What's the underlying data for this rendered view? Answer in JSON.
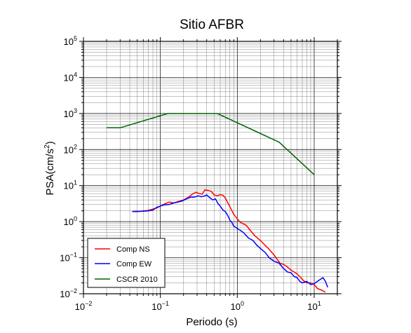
{
  "chart_data": {
    "type": "line",
    "title": "Sitio AFBR",
    "xlabel": "Periodo (s)",
    "ylabel_main": "PSA(cm/s",
    "ylabel_sup": "2",
    "ylabel_close": ")",
    "x_scale": "log",
    "y_scale": "log",
    "xlim": [
      0.01,
      20
    ],
    "ylim": [
      0.01,
      100000
    ],
    "grid": true,
    "x_ticks": [
      {
        "value": 0.01,
        "base": "10",
        "exp": "−2"
      },
      {
        "value": 0.1,
        "base": "10",
        "exp": "−1"
      },
      {
        "value": 1,
        "base": "10",
        "exp": "0"
      },
      {
        "value": 10,
        "base": "10",
        "exp": "1"
      }
    ],
    "y_ticks": [
      {
        "value": 0.01,
        "base": "10",
        "exp": "−2"
      },
      {
        "value": 0.1,
        "base": "10",
        "exp": "−1"
      },
      {
        "value": 1,
        "base": "10",
        "exp": "0"
      },
      {
        "value": 10,
        "base": "10",
        "exp": "1"
      },
      {
        "value": 100,
        "base": "10",
        "exp": "2"
      },
      {
        "value": 1000,
        "base": "10",
        "exp": "3"
      },
      {
        "value": 10000,
        "base": "10",
        "exp": "4"
      },
      {
        "value": 100000,
        "base": "10",
        "exp": "5"
      }
    ],
    "legend_position": "bottom-left",
    "series": [
      {
        "name": "Comp NS",
        "color": "#ff0000",
        "points": [
          [
            0.045,
            1.95
          ],
          [
            0.055,
            1.95
          ],
          [
            0.07,
            2.05
          ],
          [
            0.09,
            2.4
          ],
          [
            0.11,
            3.0
          ],
          [
            0.13,
            3.5
          ],
          [
            0.15,
            3.3
          ],
          [
            0.17,
            3.6
          ],
          [
            0.2,
            4.0
          ],
          [
            0.23,
            4.7
          ],
          [
            0.26,
            5.8
          ],
          [
            0.29,
            6.5
          ],
          [
            0.32,
            6.0
          ],
          [
            0.35,
            5.8
          ],
          [
            0.38,
            7.6
          ],
          [
            0.42,
            7.3
          ],
          [
            0.46,
            6.9
          ],
          [
            0.5,
            5.5
          ],
          [
            0.55,
            5.2
          ],
          [
            0.6,
            5.6
          ],
          [
            0.65,
            5.4
          ],
          [
            0.7,
            4.5
          ],
          [
            0.8,
            2.6
          ],
          [
            0.9,
            1.6
          ],
          [
            1.0,
            1.2
          ],
          [
            1.1,
            0.95
          ],
          [
            1.3,
            0.8
          ],
          [
            1.5,
            0.55
          ],
          [
            1.7,
            0.4
          ],
          [
            2.0,
            0.3
          ],
          [
            2.3,
            0.22
          ],
          [
            2.6,
            0.17
          ],
          [
            3.0,
            0.12
          ],
          [
            3.3,
            0.09
          ],
          [
            3.6,
            0.07
          ],
          [
            4.0,
            0.065
          ],
          [
            4.5,
            0.055
          ],
          [
            5.0,
            0.045
          ],
          [
            5.5,
            0.04
          ],
          [
            6.0,
            0.035
          ],
          [
            6.5,
            0.03
          ],
          [
            7.0,
            0.025
          ],
          [
            7.5,
            0.022
          ],
          [
            8.0,
            0.02
          ],
          [
            9.0,
            0.02
          ],
          [
            10.0,
            0.018
          ],
          [
            11.0,
            0.014
          ],
          [
            12.0,
            0.013
          ],
          [
            13.0,
            0.012
          ],
          [
            14.0,
            0.011
          ]
        ]
      },
      {
        "name": "Comp EW",
        "color": "#0000ff",
        "points": [
          [
            0.043,
            1.9
          ],
          [
            0.05,
            1.9
          ],
          [
            0.06,
            1.95
          ],
          [
            0.07,
            2.0
          ],
          [
            0.08,
            2.1
          ],
          [
            0.09,
            2.5
          ],
          [
            0.11,
            2.9
          ],
          [
            0.13,
            3.0
          ],
          [
            0.15,
            3.3
          ],
          [
            0.17,
            3.5
          ],
          [
            0.19,
            3.7
          ],
          [
            0.22,
            4.3
          ],
          [
            0.25,
            4.8
          ],
          [
            0.28,
            4.8
          ],
          [
            0.31,
            5.2
          ],
          [
            0.34,
            4.9
          ],
          [
            0.37,
            5.1
          ],
          [
            0.4,
            5.5
          ],
          [
            0.44,
            4.6
          ],
          [
            0.48,
            4.0
          ],
          [
            0.52,
            4.3
          ],
          [
            0.56,
            3.2
          ],
          [
            0.6,
            2.7
          ],
          [
            0.65,
            2.1
          ],
          [
            0.7,
            1.9
          ],
          [
            0.75,
            1.5
          ],
          [
            0.8,
            1.1
          ],
          [
            0.85,
            0.95
          ],
          [
            0.9,
            0.75
          ],
          [
            1.0,
            0.65
          ],
          [
            1.2,
            0.5
          ],
          [
            1.4,
            0.35
          ],
          [
            1.6,
            0.3
          ],
          [
            1.8,
            0.22
          ],
          [
            2.0,
            0.18
          ],
          [
            2.3,
            0.14
          ],
          [
            2.6,
            0.1
          ],
          [
            3.0,
            0.08
          ],
          [
            3.5,
            0.07
          ],
          [
            4.0,
            0.05
          ],
          [
            4.5,
            0.04
          ],
          [
            5.0,
            0.038
          ],
          [
            5.5,
            0.03
          ],
          [
            6.0,
            0.028
          ],
          [
            6.5,
            0.022
          ],
          [
            7.0,
            0.02
          ],
          [
            8.0,
            0.022
          ],
          [
            9.0,
            0.018
          ],
          [
            10.0,
            0.019
          ],
          [
            11.0,
            0.022
          ],
          [
            12.0,
            0.025
          ],
          [
            13.0,
            0.028
          ],
          [
            14.0,
            0.022
          ],
          [
            15.0,
            0.015
          ]
        ]
      },
      {
        "name": "CSCR 2010",
        "color": "#006400",
        "points": [
          [
            0.02,
            400
          ],
          [
            0.03,
            400
          ],
          [
            0.125,
            1000
          ],
          [
            0.55,
            1000
          ],
          [
            3.5,
            160
          ],
          [
            10.0,
            20
          ]
        ]
      }
    ]
  }
}
